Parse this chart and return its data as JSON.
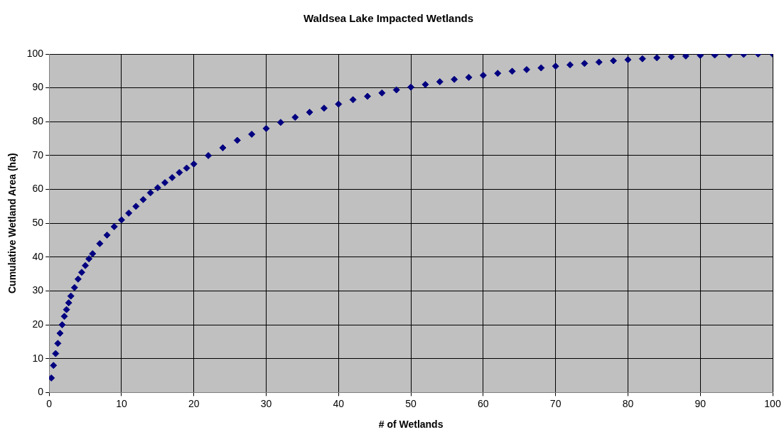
{
  "chart_data": {
    "type": "scatter",
    "title": "Waldsea Lake Impacted Wetlands",
    "xlabel": "# of Wetlands",
    "ylabel": "Cumulative Wetland Area (ha)",
    "x": [
      0.3,
      0.6,
      0.9,
      1.2,
      1.5,
      1.8,
      2.1,
      2.4,
      2.7,
      3,
      3.5,
      4,
      4.5,
      5,
      5.5,
      6,
      7,
      8,
      9,
      10,
      11,
      12,
      13,
      14,
      15,
      16,
      17,
      18,
      19,
      20,
      22,
      24,
      26,
      28,
      30,
      32,
      34,
      36,
      38,
      40,
      42,
      44,
      46,
      48,
      50,
      52,
      54,
      56,
      58,
      60,
      62,
      64,
      66,
      68,
      70,
      72,
      74,
      76,
      78,
      80,
      82,
      84,
      86,
      88,
      90,
      92,
      94,
      96,
      98,
      100
    ],
    "series": [
      {
        "color": "#000080",
        "values": [
          4.3,
          8,
          11.5,
          14.5,
          17.5,
          20,
          22.5,
          24.5,
          26.5,
          28.5,
          31,
          33.5,
          35.5,
          37.5,
          39.5,
          41,
          44,
          46.5,
          49,
          51,
          53,
          55,
          57,
          59,
          60.5,
          62,
          63.5,
          65,
          66.3,
          67.5,
          70,
          72.3,
          74.5,
          76.3,
          78,
          79.8,
          81.3,
          82.8,
          84,
          85.2,
          86.5,
          87.5,
          88.5,
          89.4,
          90.2,
          91,
          91.8,
          92.5,
          93.1,
          93.7,
          94.3,
          94.9,
          95.4,
          95.9,
          96.4,
          96.8,
          97.2,
          97.6,
          98,
          98.3,
          98.6,
          98.9,
          99.2,
          99.4,
          99.6,
          99.7,
          99.8,
          99.9,
          100,
          100
        ]
      }
    ],
    "xlim": [
      0,
      100
    ],
    "xticks": [
      0,
      10,
      20,
      30,
      40,
      50,
      60,
      70,
      80,
      90,
      100
    ],
    "ylim": [
      0,
      100
    ],
    "yticks": [
      0,
      10,
      20,
      30,
      40,
      50,
      60,
      70,
      80,
      90,
      100
    ],
    "grid": true,
    "marker": "diamond"
  }
}
